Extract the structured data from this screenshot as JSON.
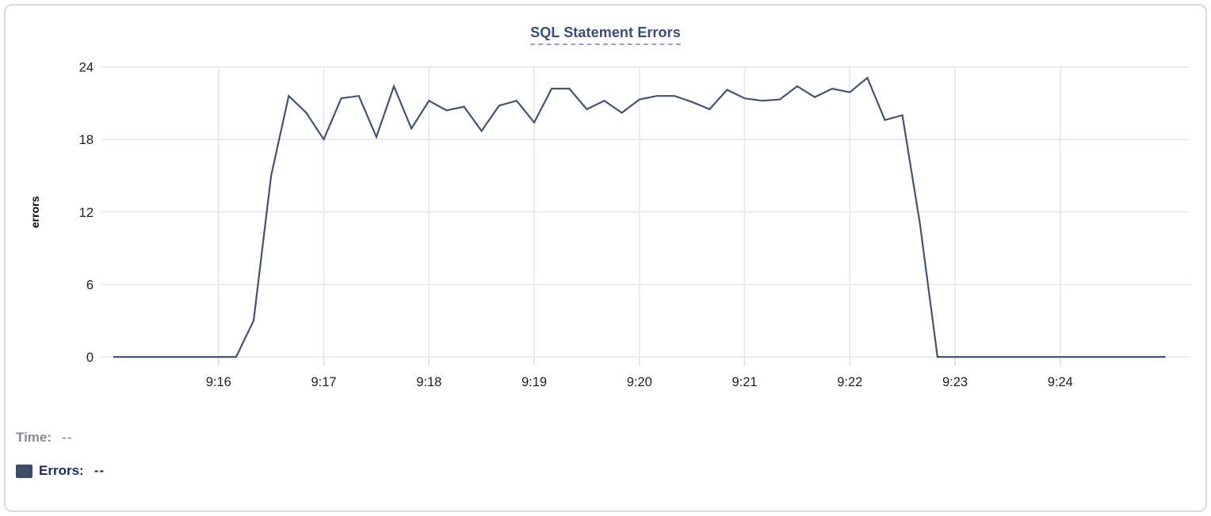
{
  "card": {
    "title": "SQL Statement Errors"
  },
  "chart_data": {
    "type": "line",
    "title": "SQL Statement Errors",
    "xlabel": "",
    "ylabel": "errors",
    "x_start_time": "9:15:00",
    "x_end_time": "9:25:00",
    "x_step_seconds": 10,
    "x_tick_labels": [
      "9:16",
      "9:17",
      "9:18",
      "9:19",
      "9:20",
      "9:21",
      "9:22",
      "9:23",
      "9:24"
    ],
    "y_ticks": [
      0,
      6,
      12,
      18,
      24
    ],
    "ylim": [
      0,
      24
    ],
    "grid": true,
    "legend_position": "none",
    "line_color": "#44536e",
    "series": [
      {
        "name": "Errors",
        "values": [
          0,
          0,
          0,
          0,
          0,
          0,
          0,
          0,
          3,
          15,
          21.6,
          20.2,
          18,
          21.4,
          21.6,
          18.2,
          22.4,
          18.9,
          21.2,
          20.4,
          20.7,
          18.7,
          20.8,
          21.2,
          19.4,
          22.2,
          22.2,
          20.5,
          21.2,
          20.2,
          21.3,
          21.6,
          21.6,
          21.1,
          20.5,
          22.1,
          21.4,
          21.2,
          21.3,
          22.4,
          21.5,
          22.2,
          21.9,
          23.1,
          19.6,
          20,
          11,
          0,
          0,
          0,
          0,
          0,
          0,
          0,
          0,
          0,
          0,
          0,
          0,
          0,
          0
        ]
      }
    ]
  },
  "tooltip": {
    "time_label": "Time:",
    "time_value": "--",
    "errors_label": "Errors:",
    "errors_value": "--",
    "swatch_color": "#3e4d66"
  },
  "colors": {
    "title": "#3c4c74",
    "title_underline": "#98a2c2",
    "gridline": "#e8e8e8",
    "axis_tick_text": "#1f1f1f",
    "ylabel_text": "#0a0a0a",
    "card_border": "#d9d9d9",
    "line": "#44536e"
  }
}
